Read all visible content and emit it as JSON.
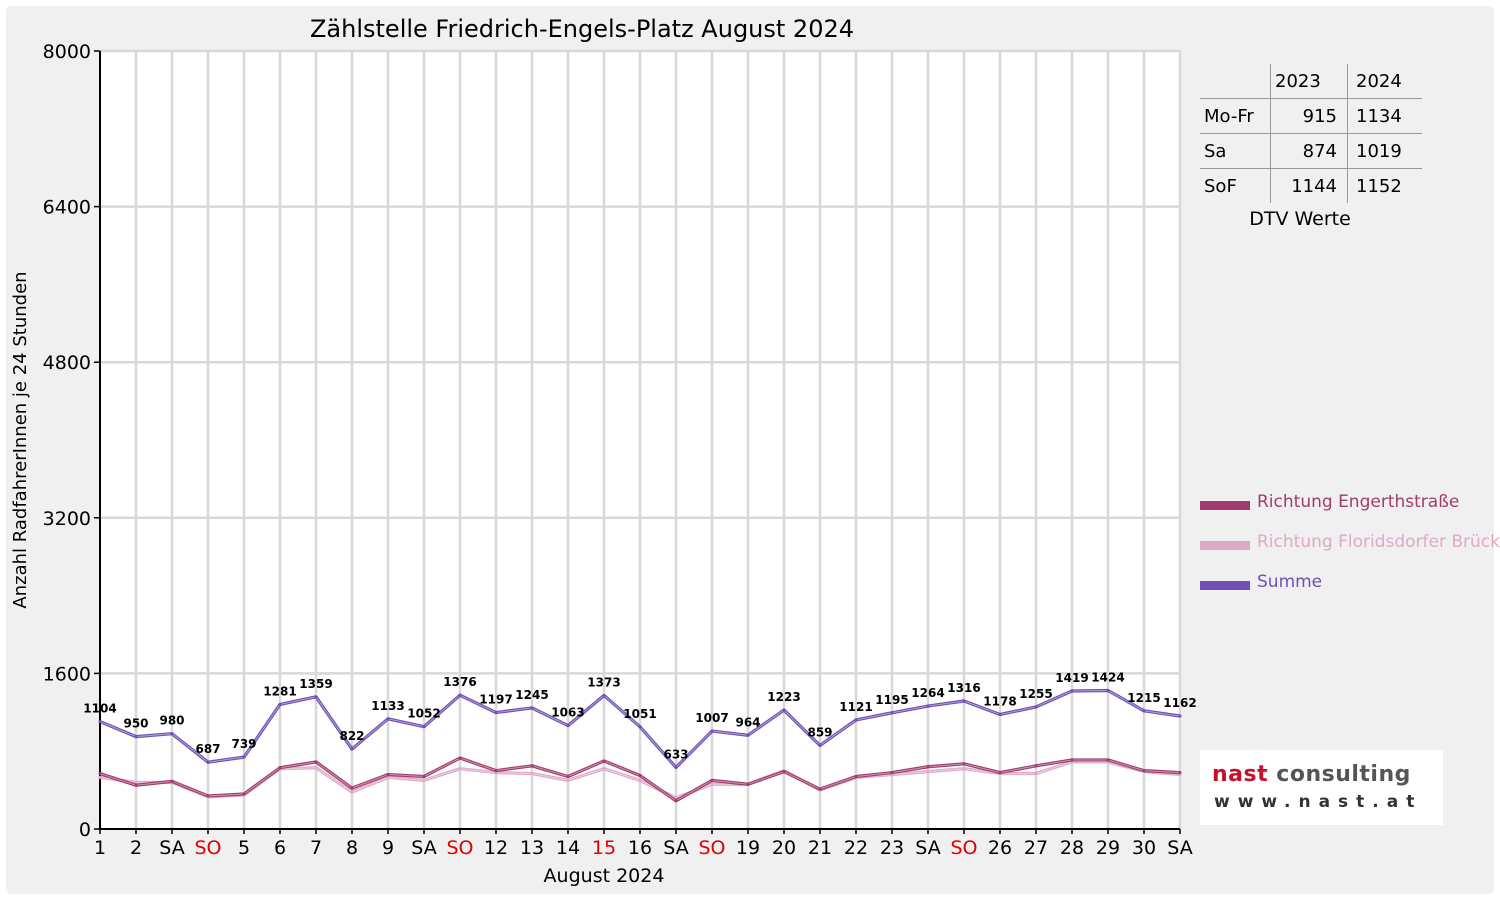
{
  "chart_data": {
    "type": "line",
    "title": "Zählstelle Friedrich-Engels-Platz August 2024",
    "xlabel": "August 2024",
    "ylabel": "Anzahl RadfahrerInnen je 24 Stunden",
    "ylim": [
      0,
      8000
    ],
    "yticks": [
      "0",
      "1600",
      "3200",
      "4800",
      "6400",
      "8000"
    ],
    "categories": [
      "1",
      "2",
      "SA",
      "SO",
      "5",
      "6",
      "7",
      "8",
      "9",
      "SA",
      "SO",
      "12",
      "13",
      "14",
      "15",
      "16",
      "SA",
      "SO",
      "19",
      "20",
      "21",
      "22",
      "23",
      "SA",
      "SO",
      "26",
      "27",
      "28",
      "29",
      "30",
      "SA"
    ],
    "red_categories": [
      3,
      10,
      14,
      17,
      24
    ],
    "grid": true,
    "legend_position": "right",
    "series": [
      {
        "name": "Richtung Engerthstraße",
        "color": "#a03c6c",
        "values": [
          570,
          450,
          490,
          340,
          360,
          630,
          690,
          420,
          560,
          540,
          730,
          600,
          650,
          540,
          700,
          550,
          290,
          500,
          460,
          590,
          410,
          540,
          580,
          640,
          670,
          580,
          650,
          710,
          710,
          600,
          580
        ]
      },
      {
        "name": "Richtung Floridsdorfer Brücke",
        "color": "#dcaac8",
        "values": [
          530,
          480,
          480,
          330,
          350,
          620,
          630,
          380,
          530,
          500,
          620,
          580,
          570,
          500,
          620,
          500,
          320,
          460,
          460,
          600,
          400,
          530,
          560,
          590,
          620,
          570,
          570,
          690,
          690,
          590,
          560
        ]
      },
      {
        "name": "Summe",
        "color": "#6e50b4",
        "values": [
          1104,
          950,
          980,
          687,
          739,
          1281,
          1359,
          822,
          1133,
          1052,
          1376,
          1197,
          1245,
          1063,
          1373,
          1051,
          633,
          1007,
          964,
          1223,
          859,
          1121,
          1195,
          1264,
          1316,
          1178,
          1255,
          1419,
          1424,
          1215,
          1162
        ],
        "data_labels": [
          "1104",
          "950",
          "980",
          "687",
          "739",
          "1281",
          "1359",
          "822",
          "1133",
          "1052",
          "1376",
          "1197",
          "1245",
          "1063",
          "1373",
          "1051",
          "633",
          "1007",
          "964",
          "1223",
          "859",
          "1121",
          "1195",
          "1264",
          "1316",
          "1178",
          "1255",
          "1419",
          "1424",
          "1215",
          "1162"
        ]
      }
    ]
  },
  "dtv_table": {
    "headers": [
      "2023",
      "2024"
    ],
    "rows": [
      {
        "label": "Mo-Fr",
        "v2023": "915",
        "v2024": "1134"
      },
      {
        "label": "Sa",
        "v2023": "874",
        "v2024": "1019"
      },
      {
        "label": "SoF",
        "v2023": "1144",
        "v2024": "1152"
      }
    ],
    "caption": "DTV Werte"
  },
  "logo": {
    "name_part1": "nast",
    "name_part2": "consulting",
    "url": "www.nast.at",
    "color1": "#c8102e",
    "color2": "#555555"
  }
}
